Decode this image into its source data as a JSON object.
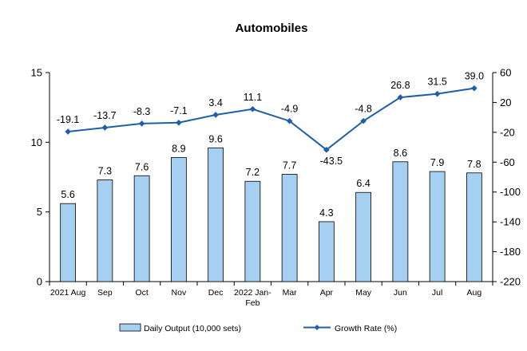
{
  "chart_data": {
    "type": "bar",
    "title": "Automobiles",
    "categories": [
      "2021 Aug",
      "Sep",
      "Oct",
      "Nov",
      "Dec",
      "2022 Jan-Feb",
      "Mar",
      "Apr",
      "May",
      "Jun",
      "Jul",
      "Aug"
    ],
    "series": [
      {
        "name": "Daily Output (10,000 sets)",
        "type": "bar",
        "axis": "left",
        "values": [
          5.6,
          7.3,
          7.6,
          8.9,
          9.6,
          7.2,
          7.7,
          4.3,
          6.4,
          8.6,
          7.9,
          7.8
        ],
        "labels": [
          "5.6",
          "7.3",
          "7.6",
          "8.9",
          "9.6",
          "7.2",
          "7.7",
          "4.3",
          "6.4",
          "8.6",
          "7.9",
          "7.8"
        ]
      },
      {
        "name": "Growth Rate (%)",
        "type": "line",
        "axis": "right",
        "values": [
          -19.1,
          -13.7,
          -8.3,
          -7.1,
          3.4,
          11.1,
          -4.9,
          -43.5,
          -4.8,
          26.8,
          31.5,
          39.0
        ],
        "labels": [
          "-19.1",
          "-13.7",
          "-8.3",
          "-7.1",
          "3.4",
          "11.1",
          "-4.9",
          "-43.5",
          "-4.8",
          "26.8",
          "31.5",
          "39.0"
        ]
      }
    ],
    "y_left": {
      "min": 0,
      "max": 15,
      "ticks": [
        0,
        5,
        10,
        15
      ]
    },
    "y_right": {
      "min": -220,
      "max": 60,
      "ticks": [
        60,
        20,
        -20,
        -60,
        -100,
        -140,
        -180,
        -220
      ]
    },
    "grid": false,
    "legend": "bottom",
    "colors": {
      "bar_fill": "#a6d0f2",
      "bar_stroke": "#000000",
      "line": "#1f5fa9"
    }
  }
}
